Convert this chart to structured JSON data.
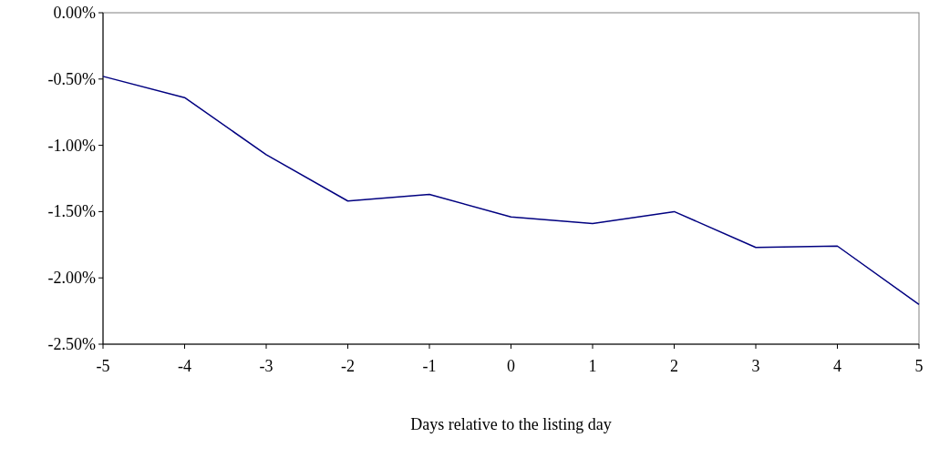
{
  "chart_data": {
    "type": "line",
    "xlabel": "Days relative to the listing day",
    "x": [
      -5,
      -4,
      -3,
      -2,
      -1,
      0,
      1,
      2,
      3,
      4,
      5
    ],
    "series": [
      {
        "color": "#000080",
        "values": [
          -0.48,
          -0.64,
          -1.07,
          -1.42,
          -1.37,
          -1.54,
          -1.59,
          -1.5,
          -1.77,
          -1.76,
          -2.2
        ]
      }
    ],
    "xlim": [
      -5,
      5
    ],
    "xticks": [
      -5,
      -4,
      -3,
      -2,
      -1,
      0,
      1,
      2,
      3,
      4,
      5
    ],
    "ylim": [
      -2.5,
      0
    ],
    "yticks": [
      {
        "value": 0,
        "label": "0.00%"
      },
      {
        "value": -0.5,
        "label": "-0.50%"
      },
      {
        "value": -1,
        "label": "-1.00%"
      },
      {
        "value": -1.5,
        "label": "-1.50%"
      },
      {
        "value": -2,
        "label": "-2.00%"
      },
      {
        "value": -2.5,
        "label": "-2.50%"
      }
    ],
    "grid": false
  }
}
